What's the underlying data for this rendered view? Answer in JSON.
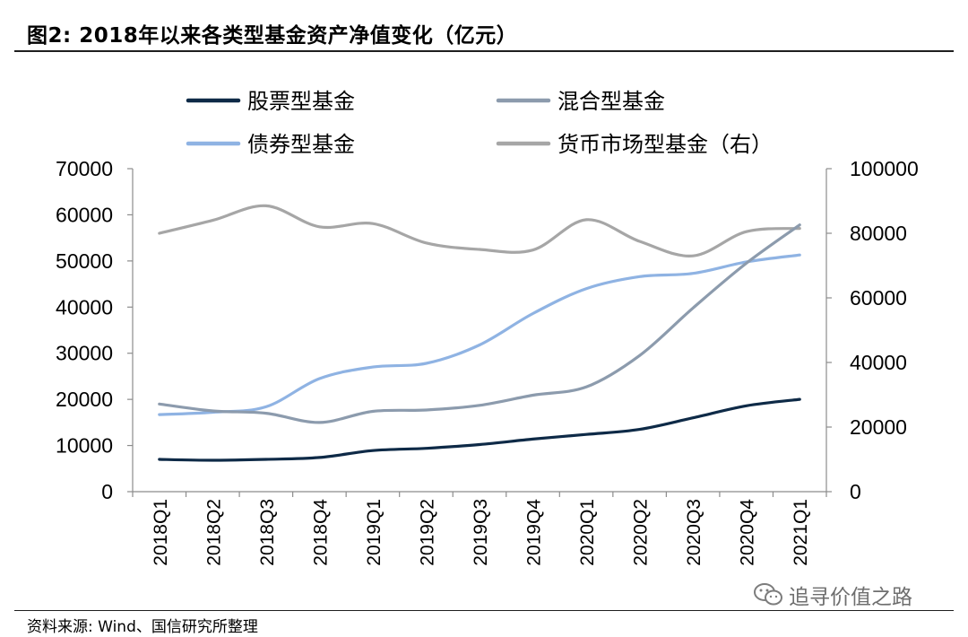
{
  "header": {
    "title": "图2:  2018年以来各类型基金资产净值变化（亿元）"
  },
  "footer": {
    "source": "资料来源: Wind、国信研究所整理",
    "watermark": "追寻价值之路"
  },
  "chart_data": {
    "type": "line",
    "categories": [
      "2018Q1",
      "2018Q2",
      "2018Q3",
      "2018Q4",
      "2019Q1",
      "2019Q2",
      "2019Q3",
      "2019Q4",
      "2020Q1",
      "2020Q2",
      "2020Q3",
      "2020Q4",
      "2021Q1"
    ],
    "y_left": {
      "ylim": [
        0,
        70000
      ],
      "ticks": [
        0,
        10000,
        20000,
        30000,
        40000,
        50000,
        60000,
        70000
      ]
    },
    "y_right": {
      "ylim": [
        0,
        100000
      ],
      "ticks": [
        0,
        20000,
        40000,
        60000,
        80000,
        100000
      ]
    },
    "grid": false,
    "legend_position": "top",
    "series": [
      {
        "name": "股票型基金",
        "axis": "left",
        "color": "#0e2a47",
        "values": [
          7000,
          6800,
          7000,
          7400,
          8900,
          9400,
          10200,
          11400,
          12400,
          13500,
          16000,
          18600,
          20000
        ]
      },
      {
        "name": "混合型基金",
        "axis": "left",
        "color": "#8c9bad",
        "values": [
          19000,
          17500,
          17000,
          15000,
          17400,
          17700,
          18700,
          20900,
          22700,
          29500,
          39800,
          49500,
          57800
        ]
      },
      {
        "name": "债券型基金",
        "axis": "left",
        "color": "#8fb3e3",
        "values": [
          16700,
          17200,
          18400,
          24500,
          27000,
          27800,
          31800,
          38600,
          44000,
          46600,
          47300,
          49800,
          51300
        ]
      },
      {
        "name": "货币市场型基金（右）",
        "axis": "right",
        "color": "#a6a6a6",
        "values": [
          80000,
          84000,
          88500,
          82000,
          83000,
          77000,
          75000,
          74800,
          84200,
          77500,
          73000,
          80500,
          81500
        ]
      }
    ]
  }
}
